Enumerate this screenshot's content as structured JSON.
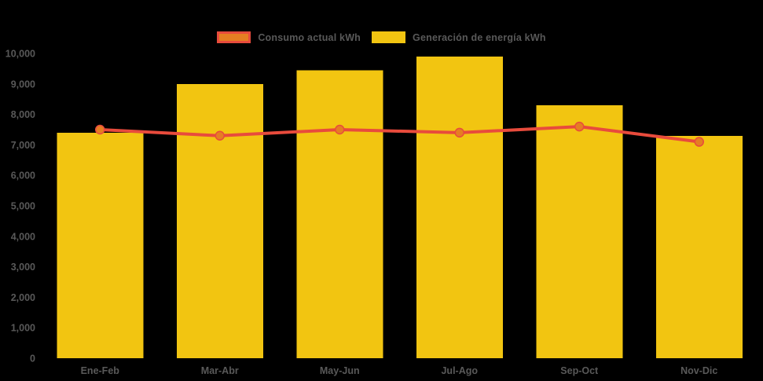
{
  "colors": {
    "background": "#000000",
    "text": "#595959",
    "bar_yellow": "#F2C511",
    "line_red": "#E84B3C",
    "marker_orange": "#E67E22"
  },
  "legend": {
    "items": [
      {
        "label": "Consumo actual kWh",
        "series": "line"
      },
      {
        "label": "Generación de energía kWh",
        "series": "bar"
      }
    ]
  },
  "chart_data": {
    "type": "bar",
    "title": "",
    "xlabel": "",
    "ylabel": "",
    "categories": [
      "Ene-Feb",
      "Mar-Abr",
      "May-Jun",
      "Jul-Ago",
      "Sep-Oct",
      "Nov-Dic"
    ],
    "series": [
      {
        "name": "Generación de energía kWh",
        "type": "bar",
        "color": "#F2C511",
        "values": [
          7400,
          9000,
          9450,
          9900,
          8300,
          7300
        ]
      },
      {
        "name": "Consumo actual kWh",
        "type": "line",
        "color": "#E84B3C",
        "marker_color": "#E67E22",
        "values": [
          7500,
          7300,
          7500,
          7400,
          7600,
          7100
        ]
      }
    ],
    "ylim": [
      0,
      10000
    ],
    "yticks": [
      0,
      1000,
      2000,
      3000,
      4000,
      5000,
      6000,
      7000,
      8000,
      9000,
      10000
    ],
    "ytick_labels": [
      "0",
      "1,000",
      "2,000",
      "3,000",
      "4,000",
      "5,000",
      "6,000",
      "7,000",
      "8,000",
      "9,000",
      "10,000"
    ],
    "grid": false,
    "legend_position": "top"
  }
}
